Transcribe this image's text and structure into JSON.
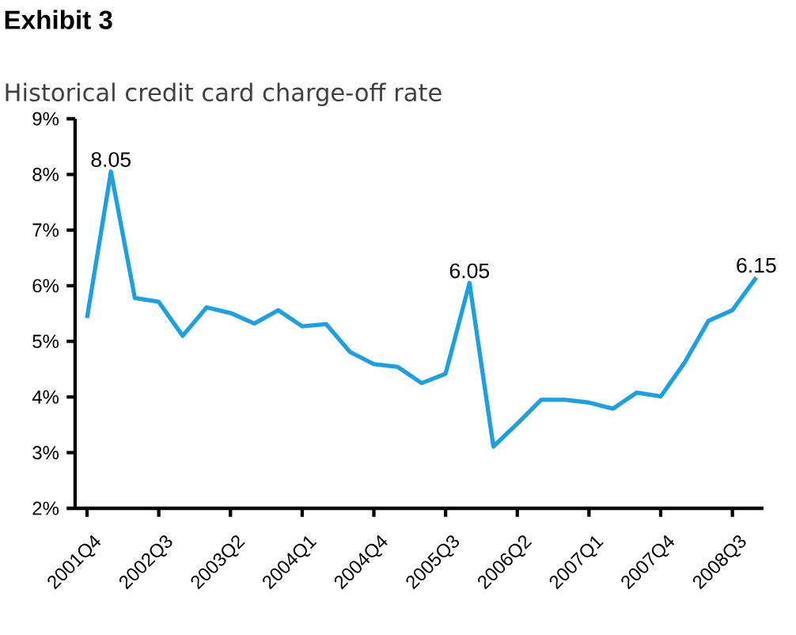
{
  "chart_data": {
    "type": "line",
    "title": "Exhibit 3",
    "subtitle": "Historical credit card charge-off rate",
    "categories": [
      "2001Q4",
      null,
      null,
      "2002Q3",
      null,
      null,
      "2003Q2",
      null,
      null,
      "2004Q1",
      null,
      null,
      "2004Q4",
      null,
      null,
      "2005Q3",
      null,
      null,
      "2006Q2",
      null,
      null,
      "2007Q1",
      null,
      null,
      "2007Q4",
      null,
      null,
      "2008Q3",
      null
    ],
    "series": [
      {
        "color": "#1ba1e2",
        "values": [
          5.42,
          8.05,
          5.78,
          5.71,
          5.1,
          5.61,
          5.51,
          5.32,
          5.56,
          5.27,
          5.31,
          4.81,
          4.59,
          4.54,
          4.25,
          4.42,
          6.05,
          3.11,
          3.52,
          3.95,
          3.95,
          3.9,
          3.79,
          4.08,
          4.01,
          4.62,
          5.37,
          5.56,
          6.15
        ],
        "value_labels": [
          null,
          "8.05",
          null,
          null,
          null,
          null,
          null,
          null,
          null,
          null,
          null,
          null,
          null,
          null,
          null,
          null,
          "6.05",
          null,
          null,
          null,
          null,
          null,
          null,
          null,
          null,
          null,
          null,
          null,
          "6.15"
        ]
      }
    ],
    "ylim": [
      2,
      9
    ],
    "yticks": [
      {
        "value": 2,
        "label": "2%"
      },
      {
        "value": 3,
        "label": "3%"
      },
      {
        "value": 4,
        "label": "4%"
      },
      {
        "value": 5,
        "label": "5%"
      },
      {
        "value": 6,
        "label": "6%"
      },
      {
        "value": 7,
        "label": "7%"
      },
      {
        "value": 8,
        "label": "8%"
      },
      {
        "value": 9,
        "label": "9%"
      }
    ],
    "grid": false,
    "marker": "none",
    "line_style": "solid"
  }
}
